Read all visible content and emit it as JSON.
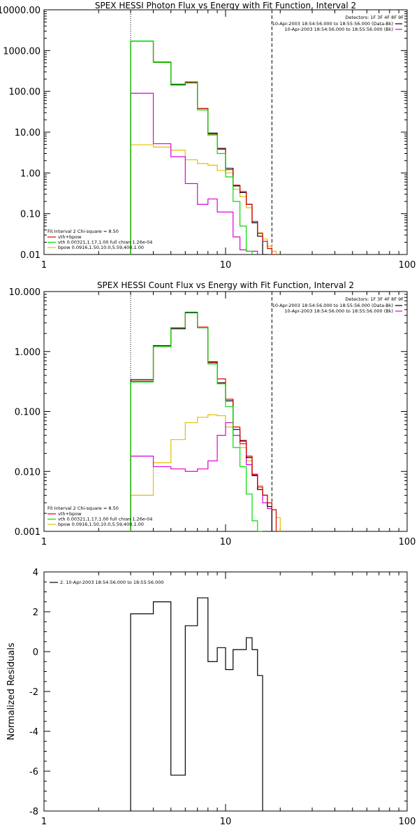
{
  "colors": {
    "data": "#000000",
    "total": "#dd0000",
    "vth": "#00dd00",
    "bpow": "#dddd00",
    "bk": "#dd00dd",
    "bpow_display": "#e0c000"
  },
  "chart_data": [
    {
      "type": "line",
      "title": "SPEX HESSI Photon Flux vs Energy with Fit Function, Interval 2",
      "xlabel": "",
      "ylabel": "",
      "xscale": "log",
      "yscale": "log",
      "xlim": [
        1,
        100
      ],
      "ylim": [
        0.01,
        10000
      ],
      "x_ticks": [
        "1",
        "10",
        "100"
      ],
      "y_ticks": [
        "0.01",
        "0.10",
        "1.00",
        "10.00",
        "100.00",
        "1000.00",
        "10000.00"
      ],
      "energy_edges": [
        3,
        4,
        5,
        6,
        7,
        8,
        9,
        10,
        11,
        12,
        13,
        14,
        15,
        16,
        17,
        18,
        19,
        20,
        22
      ],
      "series": [
        {
          "key": "data",
          "values": [
            1700,
            520,
            145,
            165,
            38,
            9.5,
            4.0,
            1.3,
            0.48,
            0.33,
            0.17,
            0.06,
            0.028,
            0.01,
            null,
            null,
            null,
            null
          ]
        },
        {
          "key": "total",
          "values": [
            1700,
            520,
            150,
            170,
            38,
            9.0,
            3.8,
            1.2,
            0.5,
            0.35,
            0.17,
            0.065,
            0.033,
            0.021,
            0.014,
            0.01,
            null,
            null
          ]
        },
        {
          "key": "vth",
          "values": [
            1720,
            510,
            150,
            160,
            35,
            8.5,
            3.0,
            0.8,
            0.2,
            0.05,
            0.012,
            null,
            null,
            null,
            null,
            null,
            null,
            null
          ]
        },
        {
          "key": "bpow",
          "values": [
            4.9,
            4.3,
            3.6,
            2.1,
            1.7,
            1.55,
            1.15,
            1.0,
            0.4,
            0.26,
            0.14,
            0.065,
            0.034,
            0.024,
            0.016,
            0.012,
            null,
            null
          ]
        },
        {
          "key": "bk",
          "values": [
            90,
            5.2,
            2.5,
            0.55,
            0.17,
            0.23,
            0.11,
            0.11,
            0.027,
            0.013,
            0.012,
            0.012,
            null,
            null,
            null,
            null,
            null,
            null
          ]
        }
      ],
      "detectors": "Detectors: 1F 3F 4F 8F 9F",
      "time_lines": [
        {
          "key": "data",
          "text": "10-Apr-2003 18:54:56.000 to 18:55:56.000 (Data-Bk)"
        },
        {
          "key": "bk",
          "text": "10-Apr-2003 18:54:56.000 to 18:55:56.000 (Bk)"
        }
      ],
      "fit_header": "Fit Interval 2   Chi-square = 8.50",
      "fit_lines": [
        {
          "key": "total",
          "text": "vth+bpow"
        },
        {
          "key": "vth",
          "text": "vth 0.00321,1.17,1.00  full chian 1.26e-04"
        },
        {
          "key": "bpow",
          "text": "bpow 0.0916,1.50,10.0,5.59,400,1.00"
        }
      ],
      "vertical_lines": [
        {
          "x": 3,
          "style": "dotted"
        },
        {
          "x": 18,
          "style": "dashed"
        }
      ]
    },
    {
      "type": "line",
      "title": "SPEX HESSI Count Flux vs Energy with Fit Function, Interval 2",
      "xlabel": "",
      "ylabel": "",
      "xscale": "log",
      "yscale": "log",
      "xlim": [
        1,
        100
      ],
      "ylim": [
        0.001,
        10
      ],
      "x_ticks": [
        "1",
        "10",
        "100"
      ],
      "y_ticks": [
        "0.001",
        "0.010",
        "0.100",
        "1.000",
        "10.000"
      ],
      "energy_edges": [
        3,
        4,
        5,
        6,
        7,
        8,
        9,
        10,
        11,
        12,
        13,
        14,
        15,
        16,
        17,
        18,
        19,
        20,
        22
      ],
      "series": [
        {
          "key": "data",
          "values": [
            0.34,
            1.25,
            2.4,
            4.5,
            2.5,
            0.67,
            0.3,
            0.15,
            0.05,
            0.032,
            0.017,
            0.0085,
            0.005,
            0.004,
            0.0026,
            null,
            null,
            null
          ]
        },
        {
          "key": "total",
          "values": [
            0.32,
            1.2,
            2.5,
            4.4,
            2.55,
            0.65,
            0.35,
            0.16,
            0.055,
            0.033,
            0.018,
            0.0088,
            0.0055,
            0.004,
            0.003,
            0.0023,
            null,
            null
          ]
        },
        {
          "key": "vth",
          "values": [
            0.31,
            1.2,
            2.5,
            4.4,
            2.5,
            0.62,
            0.29,
            0.12,
            0.025,
            0.012,
            0.0042,
            0.0015,
            0.0008,
            null,
            null,
            null,
            null,
            null
          ]
        },
        {
          "key": "bpow",
          "values": [
            0.004,
            0.014,
            0.034,
            0.065,
            0.08,
            0.088,
            0.085,
            0.055,
            0.04,
            0.025,
            0.015,
            0.009,
            0.0058,
            0.004,
            0.003,
            0.0023,
            0.0017,
            null
          ]
        },
        {
          "key": "bk",
          "values": [
            0.018,
            0.012,
            0.011,
            0.01,
            0.011,
            0.015,
            0.04,
            0.065,
            0.04,
            0.029,
            0.013,
            0.009,
            0.005,
            0.003,
            0.0024,
            null,
            null,
            null
          ]
        }
      ],
      "detectors": "Detectors: 1F 3F 4F 8F 9F",
      "time_lines": [
        {
          "key": "data",
          "text": "10-Apr-2003 18:54:56.000 to 18:55:56.000 (Data-Bk)"
        },
        {
          "key": "bk",
          "text": "10-Apr-2003 18:54:56.000 to 18:55:56.000 (Bk)"
        }
      ],
      "fit_header": "Fit Interval 2   Chi-square = 8.50",
      "fit_lines": [
        {
          "key": "total",
          "text": "vth+bpow"
        },
        {
          "key": "vth",
          "text": "vth 0.00321,1.17,1.00  full chian 1.26e-04"
        },
        {
          "key": "bpow",
          "text": "bpow 0.0916,1.50,10.0,5.59,400,1.00"
        }
      ],
      "vertical_lines": [
        {
          "x": 3,
          "style": "dotted"
        },
        {
          "x": 18,
          "style": "dashed"
        }
      ]
    },
    {
      "type": "line",
      "title": "",
      "xlabel": "",
      "ylabel": "Normalized Residuals",
      "xscale": "log",
      "yscale": "linear",
      "xlim": [
        1,
        100
      ],
      "ylim": [
        -8,
        4
      ],
      "x_ticks": [
        "1",
        "10",
        "100"
      ],
      "y_ticks": [
        "-8",
        "-6",
        "-4",
        "-2",
        "0",
        "2",
        "4"
      ],
      "energy_edges": [
        3,
        4,
        5,
        6,
        7,
        8,
        9,
        10,
        11,
        12,
        13,
        14,
        15,
        16,
        17,
        18
      ],
      "series": [
        {
          "key": "data",
          "values": [
            1.9,
            2.5,
            -6.2,
            1.3,
            2.7,
            -0.5,
            0.2,
            -0.9,
            0.1,
            0.1,
            0.7,
            0.1,
            -1.2,
            null,
            null
          ]
        }
      ],
      "legend": {
        "key": "data",
        "text": "2. 10-Apr-2003 18:54:56.000 to 18:55:56.000"
      },
      "bottom_line": true
    }
  ]
}
